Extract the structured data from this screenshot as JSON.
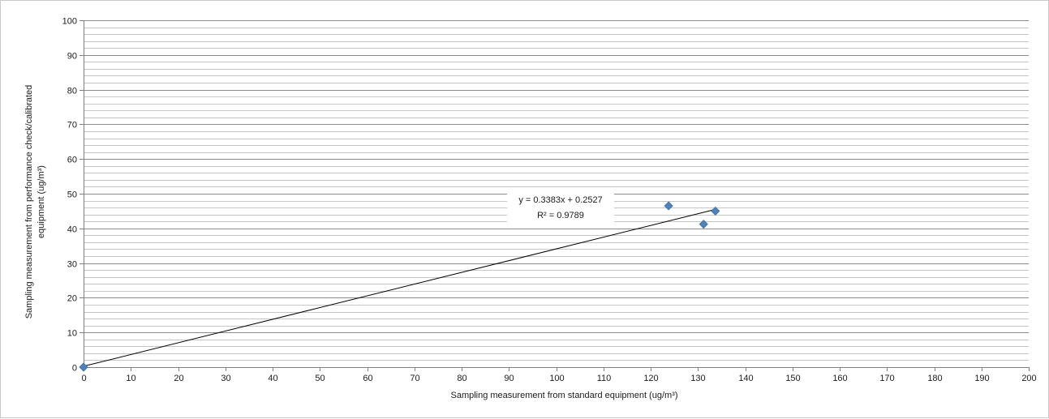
{
  "chart_data": {
    "type": "scatter",
    "title": "",
    "xlabel": "Sampling measurement from standard equipment  (ug/m³)",
    "ylabel_lines": [
      "Sampling measurement from performance check/calibrated",
      "equipment (ug/m³)"
    ],
    "xlim": [
      0,
      200
    ],
    "ylim": [
      0,
      100
    ],
    "x_major_step": 10,
    "y_major_step": 10,
    "y_minor_step": 2,
    "grid": true,
    "legend": "none",
    "series": [
      {
        "color": "#4f81bd",
        "marker": "diamond",
        "points": [
          {
            "x": 0,
            "y": 0
          },
          {
            "x": 123.8,
            "y": 46.5
          },
          {
            "x": 131.2,
            "y": 41.2
          },
          {
            "x": 133.7,
            "y": 45.0
          }
        ]
      }
    ],
    "trendline": {
      "type": "linear",
      "slope": 0.3383,
      "intercept": 0.2527,
      "x_range": [
        0,
        133.7
      ],
      "equation": "y = 0.3383x + 0.2527",
      "r_squared": "R² = 0.9789",
      "color": "#000000"
    }
  }
}
